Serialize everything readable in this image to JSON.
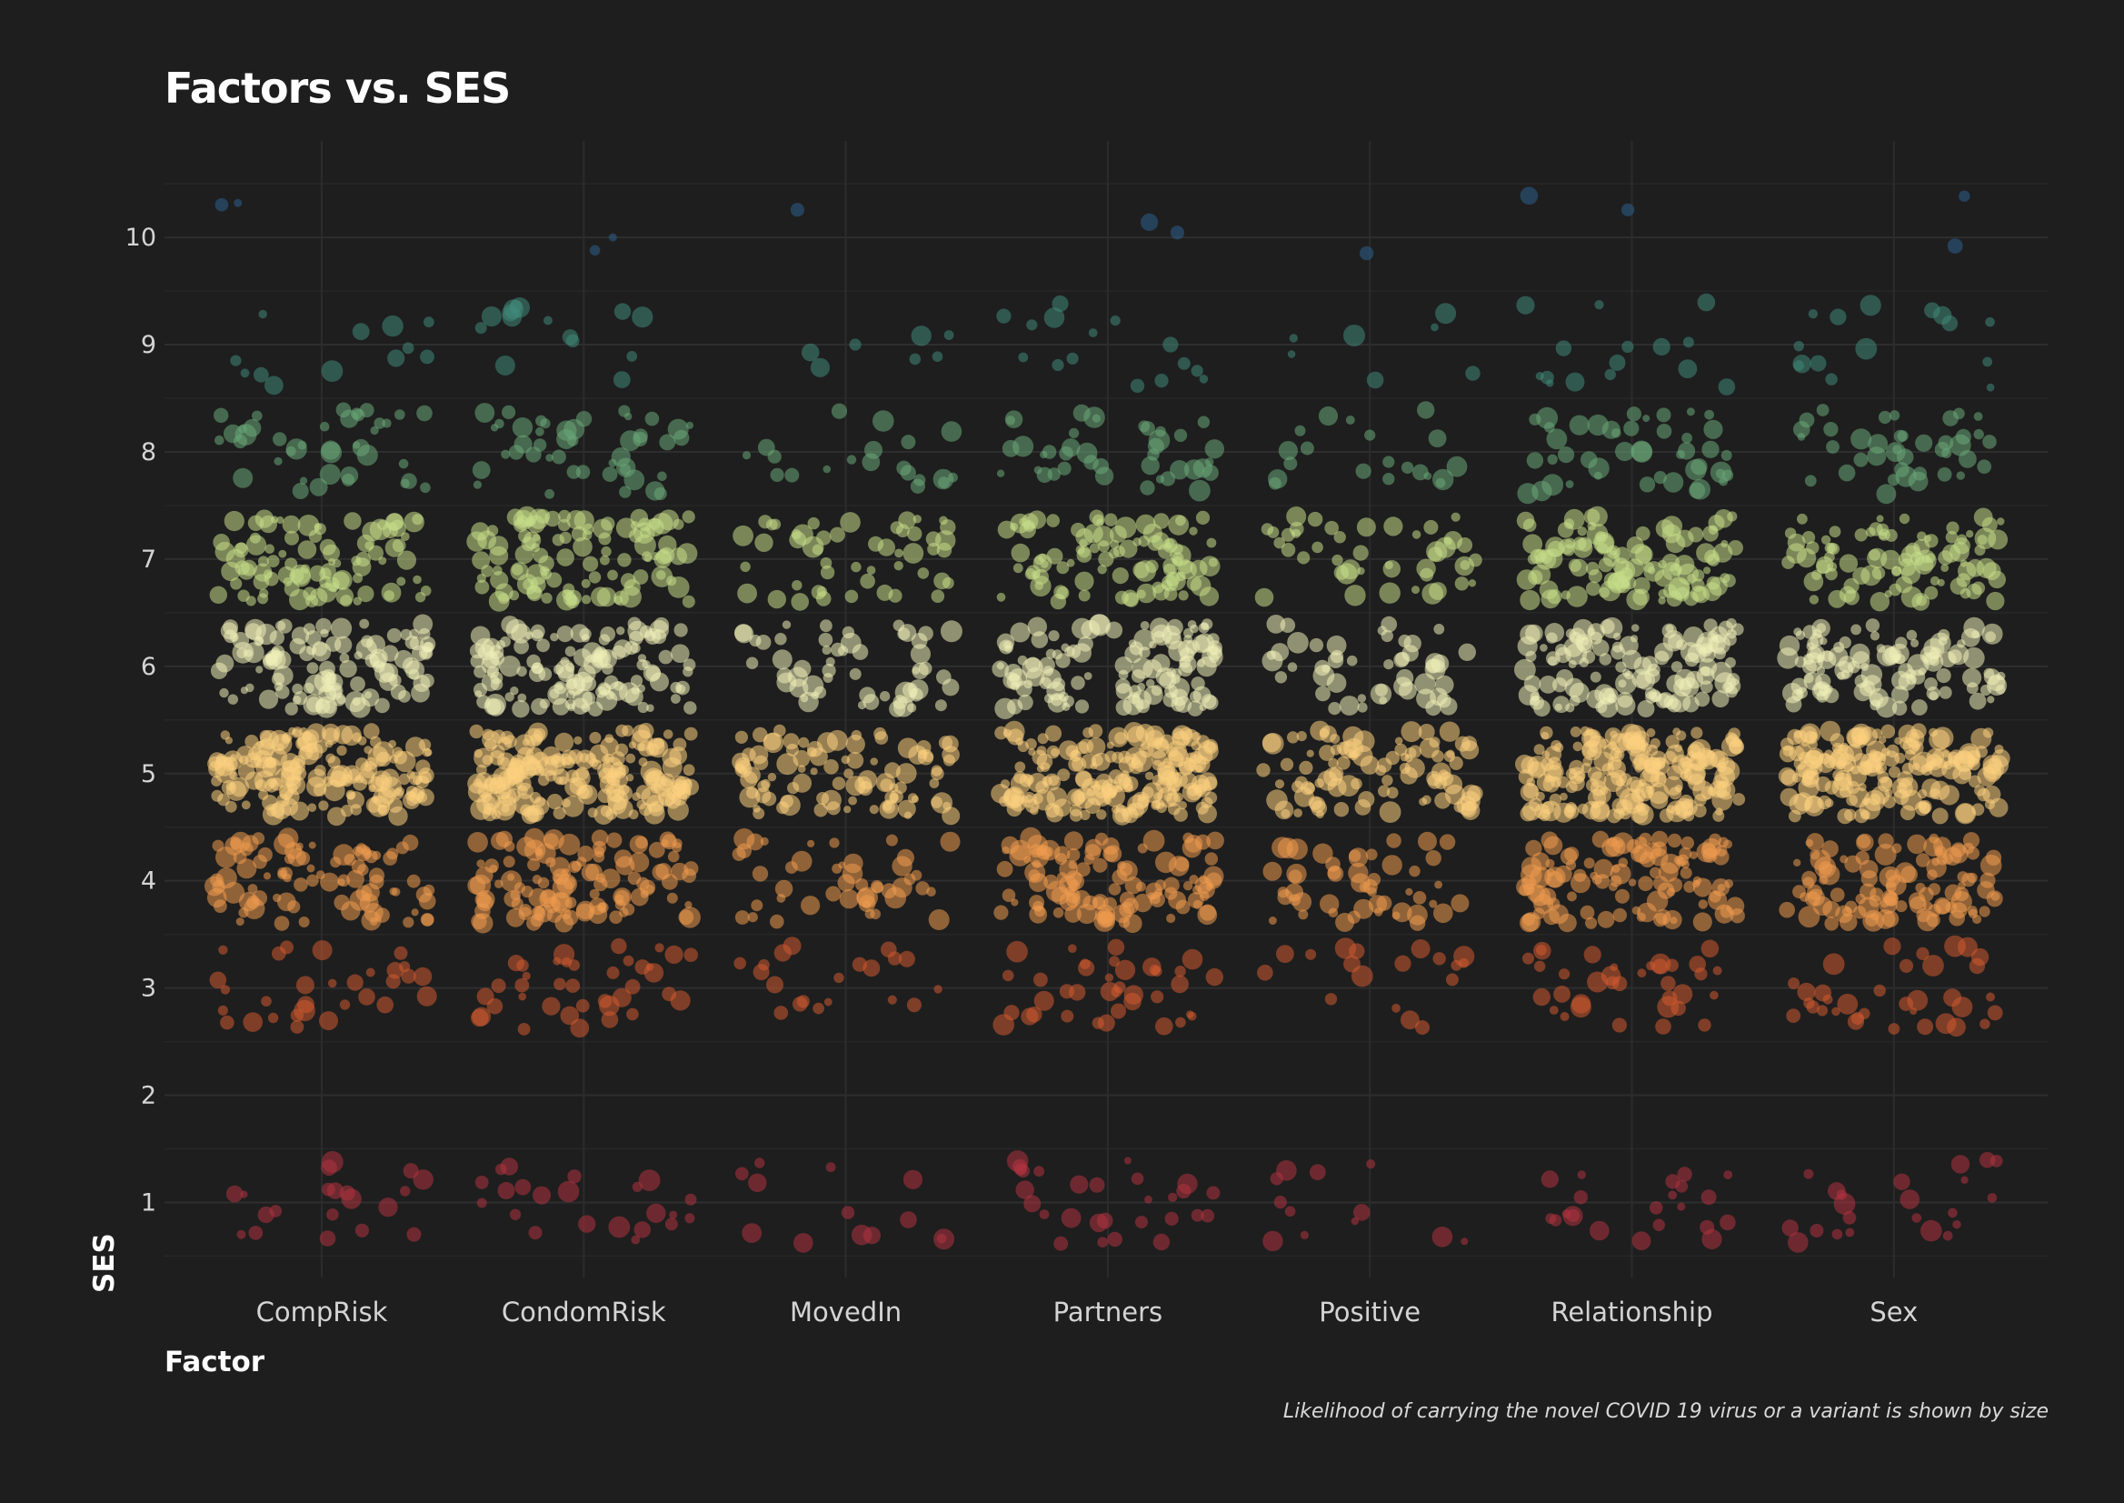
{
  "chart_data": {
    "type": "scatter",
    "title": "Factors vs. SES",
    "xlabel": "Factor",
    "ylabel": "SES",
    "caption": "Likelihood of carrying the novel COVID 19 virus or a variant is shown by size",
    "categories": [
      "CompRisk",
      "CondomRisk",
      "MovedIn",
      "Partners",
      "Positive",
      "Relationship",
      "Sex"
    ],
    "ylim": [
      0.3,
      10.9
    ],
    "yticks": [
      1,
      2,
      3,
      4,
      5,
      6,
      7,
      8,
      9,
      10
    ],
    "grid": true,
    "jitter": "horizontal ±0.4 category, vertical ±0.4 level",
    "ses_levels": [
      1,
      3,
      4,
      5,
      6,
      7,
      8,
      9,
      10
    ],
    "level_colors": {
      "1": "#b0333f",
      "3": "#d05a30",
      "4": "#ef9a4e",
      "5": "#fcd07e",
      "6": "#eeeeb8",
      "7": "#c6dc88",
      "8": "#6aa878",
      "9": "#3f8878",
      "10": "#2d5e8c"
    },
    "point_counts": {
      "CompRisk": {
        "1": 20,
        "3": 30,
        "4": 90,
        "5": 175,
        "6": 120,
        "7": 95,
        "8": 40,
        "9": 12,
        "10": 2
      },
      "CondomRisk": {
        "1": 22,
        "3": 38,
        "4": 120,
        "5": 200,
        "6": 130,
        "7": 110,
        "8": 45,
        "9": 15,
        "10": 2
      },
      "MovedIn": {
        "1": 13,
        "3": 20,
        "4": 45,
        "5": 95,
        "6": 55,
        "7": 50,
        "8": 20,
        "9": 7,
        "10": 1
      },
      "Partners": {
        "1": 28,
        "3": 38,
        "4": 115,
        "5": 195,
        "6": 125,
        "7": 100,
        "8": 40,
        "9": 15,
        "10": 2
      },
      "Positive": {
        "1": 12,
        "3": 18,
        "4": 50,
        "5": 95,
        "6": 50,
        "7": 45,
        "8": 20,
        "9": 7,
        "10": 1
      },
      "Relationship": {
        "1": 22,
        "3": 35,
        "4": 115,
        "5": 200,
        "6": 130,
        "7": 115,
        "8": 45,
        "9": 15,
        "10": 2
      },
      "Sex": {
        "1": 22,
        "3": 35,
        "4": 110,
        "5": 185,
        "6": 115,
        "7": 95,
        "8": 40,
        "9": 15,
        "10": 2
      }
    },
    "size_range": [
      4,
      12
    ]
  }
}
